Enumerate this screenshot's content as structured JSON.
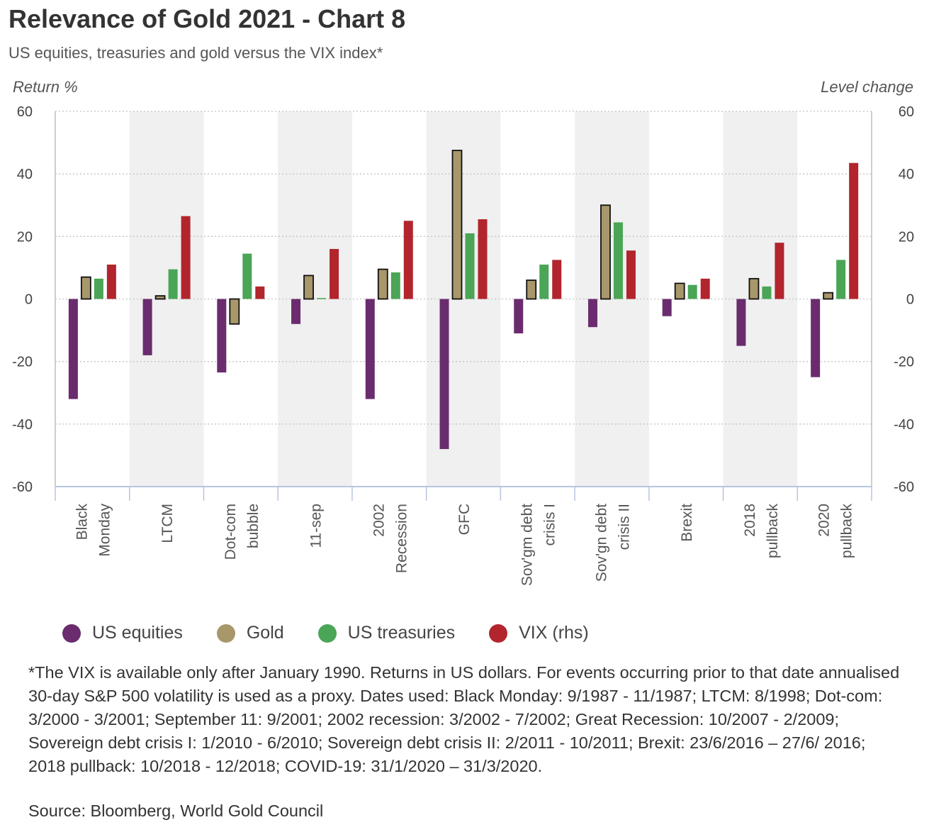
{
  "title": "Relevance of Gold 2021 - Chart 8",
  "subtitle": "US equities, treasuries and gold versus the VIX index*",
  "note": "*The VIX is available only after January 1990. Returns in US dollars. For events occurring prior to that date annualised 30-day S&P 500 volatility is used as a proxy. Dates used: Black Monday: 9/1987 - 11/1987; LTCM: 8/1998; Dot-com: 3/2000 - 3/2001; September 11: 9/2001; 2002 recession: 3/2002 - 7/2002; Great Recession: 10/2007 - 2/2009; Sovereign debt crisis I: 1/2010 - 6/2010; Sovereign debt crisis II: 2/2011 - 10/2011; Brexit: 23/6/2016 – 27/6/ 2016; 2018 pullback: 10/2018 - 12/2018; COVID-19: 31/1/2020 – 31/3/2020.",
  "source": "Source: Bloomberg, World Gold Council",
  "chart_data": {
    "type": "bar",
    "ylabel": "Return %",
    "y2label": "Level change",
    "ylim": [
      -60,
      60
    ],
    "y2lim": [
      -60,
      60
    ],
    "yticks": [
      60,
      40,
      20,
      0,
      -20,
      -40,
      -60
    ],
    "grid": true,
    "legend_position": "bottom",
    "categories": [
      [
        "Black",
        "Monday"
      ],
      [
        "LTCM"
      ],
      [
        "Dot-com",
        "bubble"
      ],
      [
        "11-sep"
      ],
      [
        "2002",
        "Recession"
      ],
      [
        "GFC"
      ],
      [
        "Sov'gm debt",
        "crisis I"
      ],
      [
        "Sov'gn debt",
        "crisis II"
      ],
      [
        "Brexit"
      ],
      [
        "2018",
        "pullback"
      ],
      [
        "2020",
        "pullback"
      ]
    ],
    "series": [
      {
        "name": "US equities",
        "color": "#6a2c6e",
        "axis": "left",
        "values": [
          -32,
          -18,
          -23.5,
          -8,
          -32,
          -48,
          -11,
          -9,
          -5.5,
          -15,
          -25
        ]
      },
      {
        "name": "Gold",
        "color": "#a8976a",
        "axis": "left",
        "outlined": true,
        "values": [
          7,
          1,
          -8,
          7.5,
          9.5,
          47.5,
          6,
          30,
          5,
          6.5,
          2
        ]
      },
      {
        "name": "US treasuries",
        "color": "#4aa556",
        "axis": "left",
        "values": [
          6.5,
          9.5,
          14.5,
          0.3,
          8.5,
          21,
          11,
          24.5,
          4.5,
          4,
          12.5
        ]
      },
      {
        "name": "VIX (rhs)",
        "color": "#b2252d",
        "axis": "right",
        "values": [
          11,
          26.5,
          4,
          16,
          25,
          25.5,
          12.5,
          15.5,
          6.5,
          18,
          43.5
        ]
      }
    ],
    "shaded_categories": [
      1,
      3,
      5,
      7,
      9
    ]
  }
}
